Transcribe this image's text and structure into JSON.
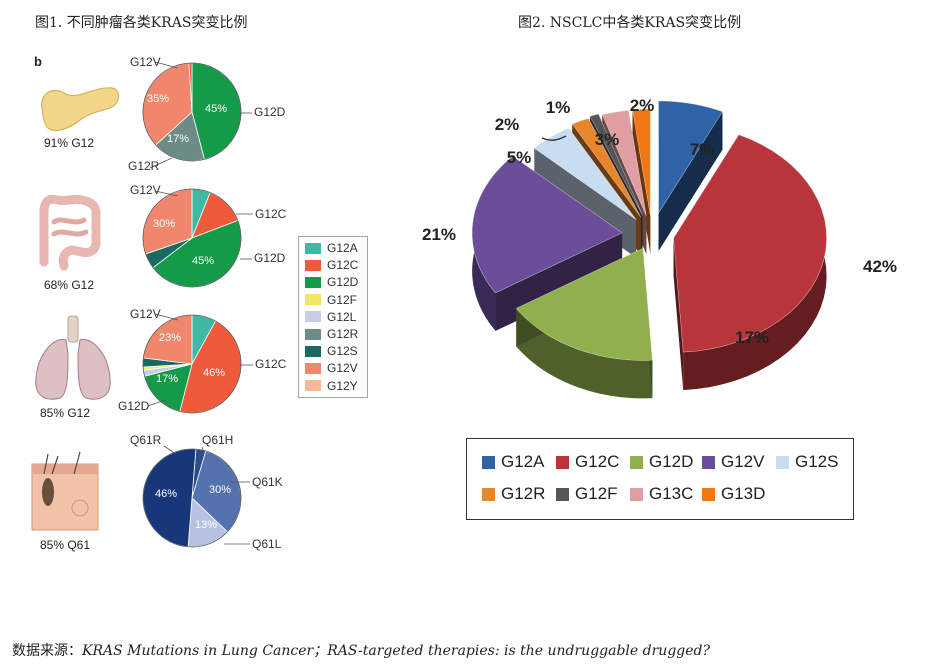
{
  "fig1": {
    "title": "图1. 不同肿瘤各类KRAS突变比例",
    "panel_label": "b",
    "legend": [
      {
        "name": "G12A",
        "color": "#3fb8a4"
      },
      {
        "name": "G12C",
        "color": "#ee5a3c"
      },
      {
        "name": "G12D",
        "color": "#149a48"
      },
      {
        "name": "G12F",
        "color": "#efe66a"
      },
      {
        "name": "G12L",
        "color": "#c7cde6"
      },
      {
        "name": "G12R",
        "color": "#6d8c85"
      },
      {
        "name": "G12S",
        "color": "#186a60"
      },
      {
        "name": "G12V",
        "color": "#f0876c"
      },
      {
        "name": "G12Y",
        "color": "#f7b798"
      }
    ],
    "cancers": [
      {
        "caption": "91% G12",
        "callouts": [
          "G12V",
          "G12D",
          "G12R"
        ],
        "pct_labels": [
          "35%",
          "45%",
          "17%"
        ]
      },
      {
        "caption": "68% G12",
        "callouts": [
          "G12V",
          "G12C",
          "G12D"
        ],
        "pct_labels": [
          "30%",
          "45%"
        ]
      },
      {
        "caption": "85% G12",
        "callouts": [
          "G12V",
          "G12C",
          "G12D"
        ],
        "pct_labels": [
          "23%",
          "46%",
          "17%"
        ]
      },
      {
        "caption": "85% Q61",
        "callouts": [
          "Q61R",
          "Q61H",
          "Q61K",
          "Q61L"
        ],
        "pct_labels": [
          "46%",
          "30%",
          "13%"
        ]
      }
    ]
  },
  "fig2": {
    "title": "图2. NSCLC中各类KRAS突变比例"
  },
  "source": {
    "prefix": "数据来源：",
    "text": "KRAS Mutations in Lung Cancer；RAS-targeted therapies: is the undruggable drugged?"
  },
  "chart_data": [
    {
      "type": "pie",
      "caption": "91% G12",
      "categories": [
        "G12D",
        "G12R",
        "G12V",
        "G12C"
      ],
      "values": [
        45,
        17,
        35,
        1
      ],
      "colors": [
        "#149a48",
        "#6d8c85",
        "#f0876c",
        "#ee5a3c"
      ]
    },
    {
      "type": "pie",
      "caption": "68% G12",
      "categories": [
        "G12A",
        "G12C",
        "G12D",
        "G12S",
        "G12V"
      ],
      "values": [
        6,
        13,
        45,
        5,
        30
      ],
      "colors": [
        "#3fb8a4",
        "#ee5a3c",
        "#149a48",
        "#186a60",
        "#f0876c"
      ]
    },
    {
      "type": "pie",
      "caption": "85% G12",
      "categories": [
        "G12A",
        "G12C",
        "G12D",
        "G12L",
        "G12F",
        "G12S",
        "G12V"
      ],
      "values": [
        8,
        46,
        17,
        2,
        1,
        3,
        23
      ],
      "colors": [
        "#3fb8a4",
        "#ee5a3c",
        "#149a48",
        "#c7cde6",
        "#efe66a",
        "#186a60",
        "#f0876c"
      ]
    },
    {
      "type": "pie",
      "caption": "85% Q61",
      "categories": [
        "Q61H",
        "Q61K",
        "Q61L",
        "Q61R"
      ],
      "values": [
        3,
        30,
        13,
        46
      ],
      "colors": [
        "#2a4d8a",
        "#5472ae",
        "#b7c2e2",
        "#17377a"
      ]
    },
    {
      "type": "pie",
      "title": "图2. NSCLC中各类KRAS突变比例",
      "categories": [
        "G12A",
        "G12C",
        "G12D",
        "G12V",
        "G12S",
        "G12R",
        "G12F",
        "G13C",
        "G13D"
      ],
      "values": [
        7,
        42,
        17,
        21,
        5,
        2,
        1,
        3,
        2
      ],
      "labels": [
        "7%",
        "42%",
        "17%",
        "21%",
        "5%",
        "2%",
        "1%",
        "3%",
        "2%"
      ],
      "colors": [
        "#2e63a6",
        "#b8353b",
        "#8fb04d",
        "#6c4d9a",
        "#c9ddf1",
        "#e9852b",
        "#555555",
        "#df9ea2",
        "#f07814"
      ],
      "legend": "bottom"
    }
  ]
}
